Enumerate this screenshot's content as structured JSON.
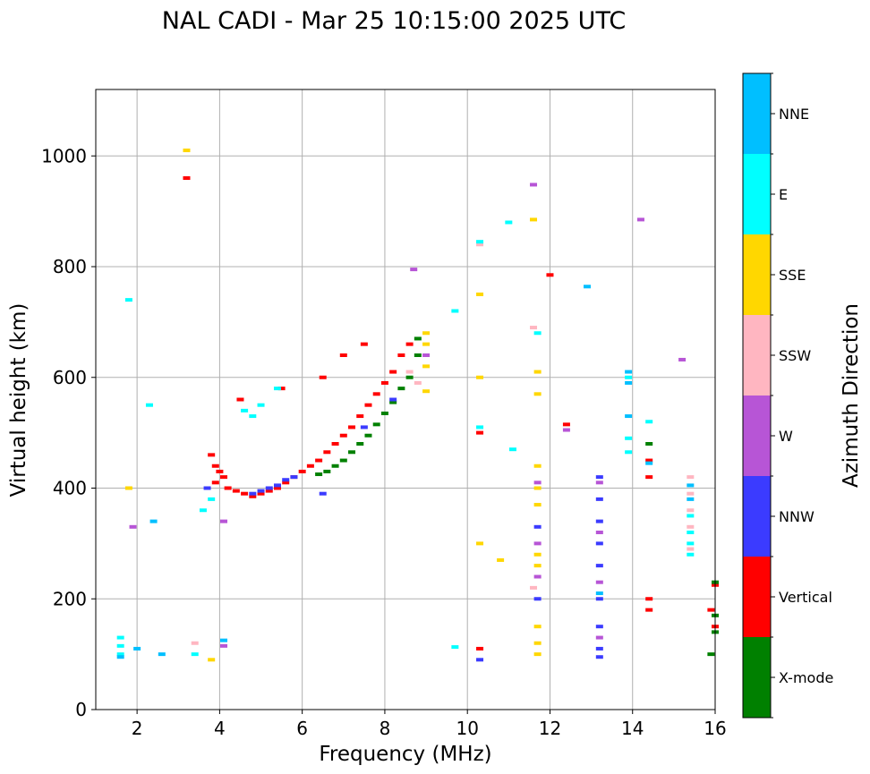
{
  "chart_data": {
    "type": "scatter",
    "title": "NAL CADI - Mar 25 10:15:00 2025 UTC",
    "xlabel": "Frequency (MHz)",
    "ylabel": "Virtual height (km)",
    "xlim": [
      1,
      16
    ],
    "ylim": [
      0,
      1120
    ],
    "xticks": [
      2,
      4,
      6,
      8,
      10,
      12,
      14,
      16
    ],
    "yticks": [
      0,
      200,
      400,
      600,
      800,
      1000
    ],
    "grid": true,
    "colorbar": {
      "label": "Azimuth Direction",
      "categories": [
        {
          "name": "X-mode",
          "color": "#008000"
        },
        {
          "name": "Vertical",
          "color": "#ff0000"
        },
        {
          "name": "NNW",
          "color": "#3b3bff"
        },
        {
          "name": "W",
          "color": "#b755d6"
        },
        {
          "name": "SSW",
          "color": "#ffb6c1"
        },
        {
          "name": "SSE",
          "color": "#ffd700"
        },
        {
          "name": "E",
          "color": "#00ffff"
        },
        {
          "name": "NNE",
          "color": "#00bfff"
        }
      ]
    },
    "series": [
      {
        "name": "Vertical",
        "points": [
          [
            3.8,
            460
          ],
          [
            3.9,
            440
          ],
          [
            4.0,
            430
          ],
          [
            4.1,
            420
          ],
          [
            3.9,
            410
          ],
          [
            4.2,
            400
          ],
          [
            4.4,
            395
          ],
          [
            4.6,
            390
          ],
          [
            4.8,
            385
          ],
          [
            5.0,
            390
          ],
          [
            5.2,
            395
          ],
          [
            5.4,
            400
          ],
          [
            5.6,
            410
          ],
          [
            5.8,
            420
          ],
          [
            6.0,
            430
          ],
          [
            6.2,
            440
          ],
          [
            6.4,
            450
          ],
          [
            6.6,
            465
          ],
          [
            6.8,
            480
          ],
          [
            7.0,
            495
          ],
          [
            7.2,
            510
          ],
          [
            7.4,
            530
          ],
          [
            7.6,
            550
          ],
          [
            7.8,
            570
          ],
          [
            8.0,
            590
          ],
          [
            8.2,
            610
          ],
          [
            8.4,
            640
          ],
          [
            8.6,
            660
          ],
          [
            10.3,
            110
          ],
          [
            10.3,
            500
          ],
          [
            12.0,
            785
          ],
          [
            12.4,
            515
          ],
          [
            14.4,
            420
          ],
          [
            14.4,
            450
          ],
          [
            14.4,
            200
          ],
          [
            14.4,
            180
          ],
          [
            16.0,
            225
          ],
          [
            16.0,
            150
          ],
          [
            15.9,
            180
          ],
          [
            3.2,
            960
          ],
          [
            4.5,
            560
          ],
          [
            5.5,
            580
          ],
          [
            6.5,
            600
          ],
          [
            7.0,
            640
          ],
          [
            7.5,
            660
          ]
        ]
      },
      {
        "name": "X-mode",
        "points": [
          [
            6.8,
            440
          ],
          [
            7.0,
            450
          ],
          [
            7.2,
            465
          ],
          [
            7.4,
            480
          ],
          [
            7.6,
            495
          ],
          [
            7.8,
            515
          ],
          [
            8.0,
            535
          ],
          [
            8.2,
            555
          ],
          [
            8.4,
            580
          ],
          [
            8.6,
            600
          ],
          [
            8.8,
            640
          ],
          [
            8.8,
            670
          ],
          [
            6.6,
            430
          ],
          [
            6.4,
            425
          ],
          [
            14.4,
            480
          ],
          [
            16.0,
            230
          ],
          [
            16.0,
            170
          ],
          [
            16.0,
            140
          ],
          [
            15.9,
            100
          ]
        ]
      },
      {
        "name": "NNW",
        "points": [
          [
            4.8,
            390
          ],
          [
            5.0,
            395
          ],
          [
            5.2,
            400
          ],
          [
            5.4,
            405
          ],
          [
            5.6,
            415
          ],
          [
            5.8,
            420
          ],
          [
            6.5,
            390
          ],
          [
            3.7,
            400
          ],
          [
            13.2,
            420
          ],
          [
            13.2,
            380
          ],
          [
            13.2,
            340
          ],
          [
            13.2,
            300
          ],
          [
            13.2,
            260
          ],
          [
            13.2,
            200
          ],
          [
            13.2,
            150
          ],
          [
            13.2,
            110
          ],
          [
            13.2,
            95
          ],
          [
            11.7,
            330
          ],
          [
            11.7,
            200
          ],
          [
            10.3,
            90
          ],
          [
            7.5,
            510
          ],
          [
            8.2,
            560
          ]
        ]
      },
      {
        "name": "W",
        "points": [
          [
            4.1,
            340
          ],
          [
            4.1,
            115
          ],
          [
            1.9,
            330
          ],
          [
            13.2,
            410
          ],
          [
            13.2,
            320
          ],
          [
            13.2,
            230
          ],
          [
            13.2,
            130
          ],
          [
            11.7,
            410
          ],
          [
            11.7,
            300
          ],
          [
            11.7,
            240
          ],
          [
            14.2,
            885
          ],
          [
            15.2,
            632
          ],
          [
            11.6,
            948
          ],
          [
            12.4,
            505
          ],
          [
            8.7,
            795
          ],
          [
            9.0,
            640
          ]
        ]
      },
      {
        "name": "SSW",
        "points": [
          [
            15.4,
            420
          ],
          [
            15.4,
            390
          ],
          [
            15.4,
            360
          ],
          [
            15.4,
            330
          ],
          [
            15.4,
            290
          ],
          [
            11.6,
            220
          ],
          [
            10.3,
            840
          ],
          [
            11.6,
            690
          ],
          [
            8.8,
            590
          ],
          [
            8.6,
            610
          ],
          [
            3.4,
            120
          ]
        ]
      },
      {
        "name": "SSE",
        "points": [
          [
            11.7,
            440
          ],
          [
            11.7,
            400
          ],
          [
            11.7,
            370
          ],
          [
            11.7,
            280
          ],
          [
            11.7,
            260
          ],
          [
            11.7,
            150
          ],
          [
            11.7,
            120
          ],
          [
            11.7,
            100
          ],
          [
            11.7,
            610
          ],
          [
            11.7,
            570
          ],
          [
            10.3,
            750
          ],
          [
            10.3,
            300
          ],
          [
            10.3,
            600
          ],
          [
            9.0,
            680
          ],
          [
            9.0,
            660
          ],
          [
            9.0,
            620
          ],
          [
            9.0,
            575
          ],
          [
            11.6,
            885
          ],
          [
            10.8,
            270
          ],
          [
            3.8,
            90
          ],
          [
            1.8,
            400
          ],
          [
            3.2,
            1010
          ]
        ]
      },
      {
        "name": "E",
        "points": [
          [
            4.6,
            540
          ],
          [
            4.8,
            530
          ],
          [
            5.0,
            550
          ],
          [
            5.4,
            580
          ],
          [
            3.8,
            380
          ],
          [
            3.6,
            360
          ],
          [
            14.4,
            520
          ],
          [
            13.9,
            490
          ],
          [
            13.9,
            465
          ],
          [
            13.9,
            600
          ],
          [
            15.4,
            350
          ],
          [
            15.4,
            320
          ],
          [
            15.4,
            300
          ],
          [
            15.4,
            280
          ],
          [
            10.3,
            510
          ],
          [
            11.7,
            680
          ],
          [
            11.0,
            880
          ],
          [
            9.7,
            720
          ],
          [
            11.1,
            470
          ],
          [
            10.3,
            845
          ],
          [
            1.6,
            130
          ],
          [
            1.6,
            115
          ],
          [
            1.6,
            100
          ],
          [
            1.8,
            740
          ],
          [
            2.3,
            550
          ],
          [
            3.4,
            100
          ],
          [
            9.7,
            113
          ]
        ]
      },
      {
        "name": "NNE",
        "points": [
          [
            13.9,
            610
          ],
          [
            13.9,
            590
          ],
          [
            13.9,
            530
          ],
          [
            14.4,
            445
          ],
          [
            12.9,
            764
          ],
          [
            15.4,
            405
          ],
          [
            15.4,
            380
          ],
          [
            13.2,
            210
          ],
          [
            1.6,
            95
          ],
          [
            2.6,
            100
          ],
          [
            2.0,
            110
          ],
          [
            2.4,
            340
          ],
          [
            4.1,
            125
          ]
        ]
      }
    ]
  }
}
